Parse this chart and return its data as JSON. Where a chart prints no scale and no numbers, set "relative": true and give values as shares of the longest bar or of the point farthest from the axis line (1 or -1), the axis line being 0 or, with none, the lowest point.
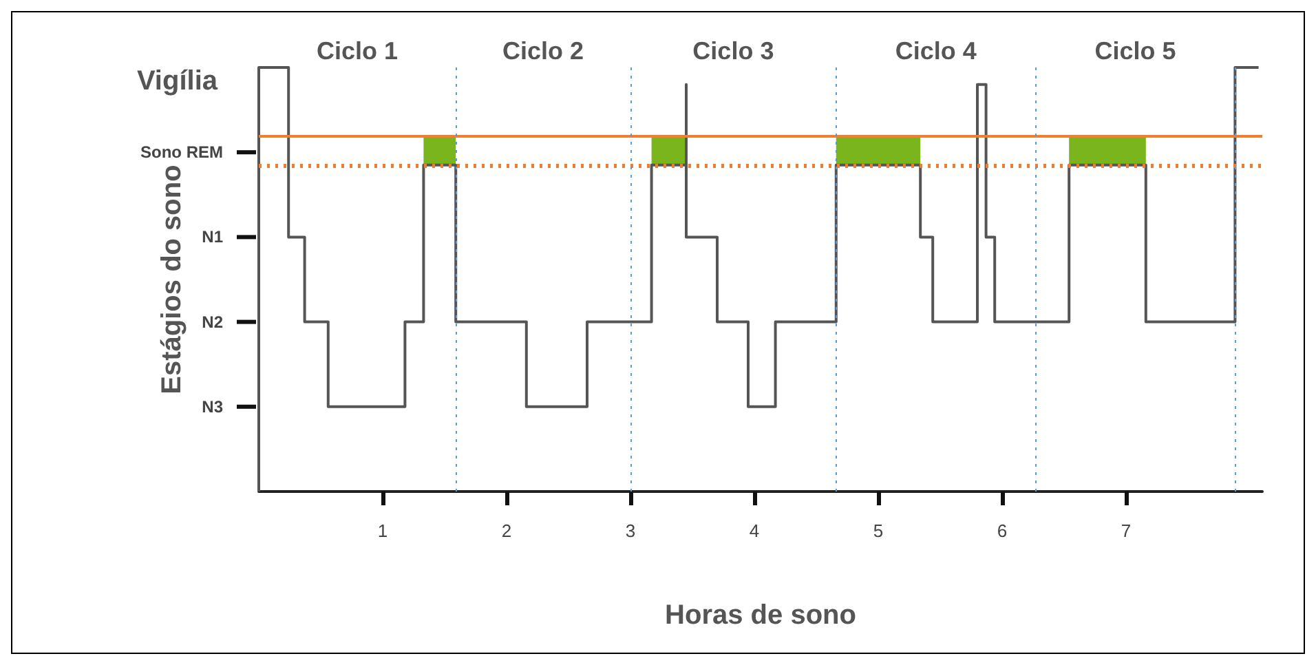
{
  "chart_data": {
    "type": "step",
    "relative": true,
    "xlabel": "Horas de sono",
    "ylabel": "Estágios do sono",
    "xlim": [
      0,
      8.1
    ],
    "xticks": [
      1,
      2,
      3,
      4,
      5,
      6,
      7
    ],
    "series": [
      {
        "color": "#555555",
        "x": [
          0,
          0,
          0.24,
          0.37,
          0.56,
          1.18,
          1.33,
          1.59,
          2.16,
          2.65,
          3.17,
          3.45,
          3.45,
          3.7,
          3.95,
          4.17,
          4.66,
          5.34,
          5.44,
          5.8,
          5.87,
          5.94,
          6.54,
          7.16,
          7.88,
          8.07
        ],
        "values": [
          0,
          1,
          0.6,
          0.4,
          0.2,
          0.4,
          0.77,
          0.4,
          0.2,
          0.4,
          0.77,
          0.96,
          0.6,
          0.4,
          0.2,
          0.4,
          0.77,
          0.6,
          0.4,
          0.96,
          0.6,
          0.4,
          0.77,
          0.4,
          1,
          1
        ]
      }
    ],
    "bands": [
      {
        "axis": "x",
        "from": 1.33,
        "to": 1.59,
        "color": "#7ab51d"
      },
      {
        "axis": "x",
        "from": 3.17,
        "to": 3.45,
        "color": "#7ab51d"
      },
      {
        "axis": "x",
        "from": 4.66,
        "to": 5.34,
        "color": "#7ab51d"
      },
      {
        "axis": "x",
        "from": 6.54,
        "to": 7.16,
        "color": "#7ab51d"
      }
    ],
    "ref_lines": [
      {
        "axis": "y",
        "value": 0.836,
        "color": "#f08030",
        "line_style": "solid"
      },
      {
        "axis": "y",
        "value": 0.77,
        "color": "#ed7d31",
        "line_style": "dotted"
      },
      {
        "axis": "x",
        "value": 1.59,
        "color": "#5b9bd5",
        "line_style": "dotted"
      },
      {
        "axis": "x",
        "value": 3.0,
        "color": "#5b9bd5",
        "line_style": "dotted"
      },
      {
        "axis": "x",
        "value": 4.66,
        "color": "#5b9bd5",
        "line_style": "dotted"
      },
      {
        "axis": "x",
        "value": 6.27,
        "color": "#5b9bd5",
        "line_style": "dotted"
      },
      {
        "axis": "x",
        "value": 7.88,
        "color": "#5b9bd5",
        "line_style": "dotted"
      }
    ],
    "annotations": [
      "Vigília",
      "Sono REM",
      "N1",
      "N2",
      "N3",
      "Ciclo 1",
      "Ciclo 2",
      "Ciclo 3",
      "Ciclo 4",
      "Ciclo 5"
    ]
  }
}
